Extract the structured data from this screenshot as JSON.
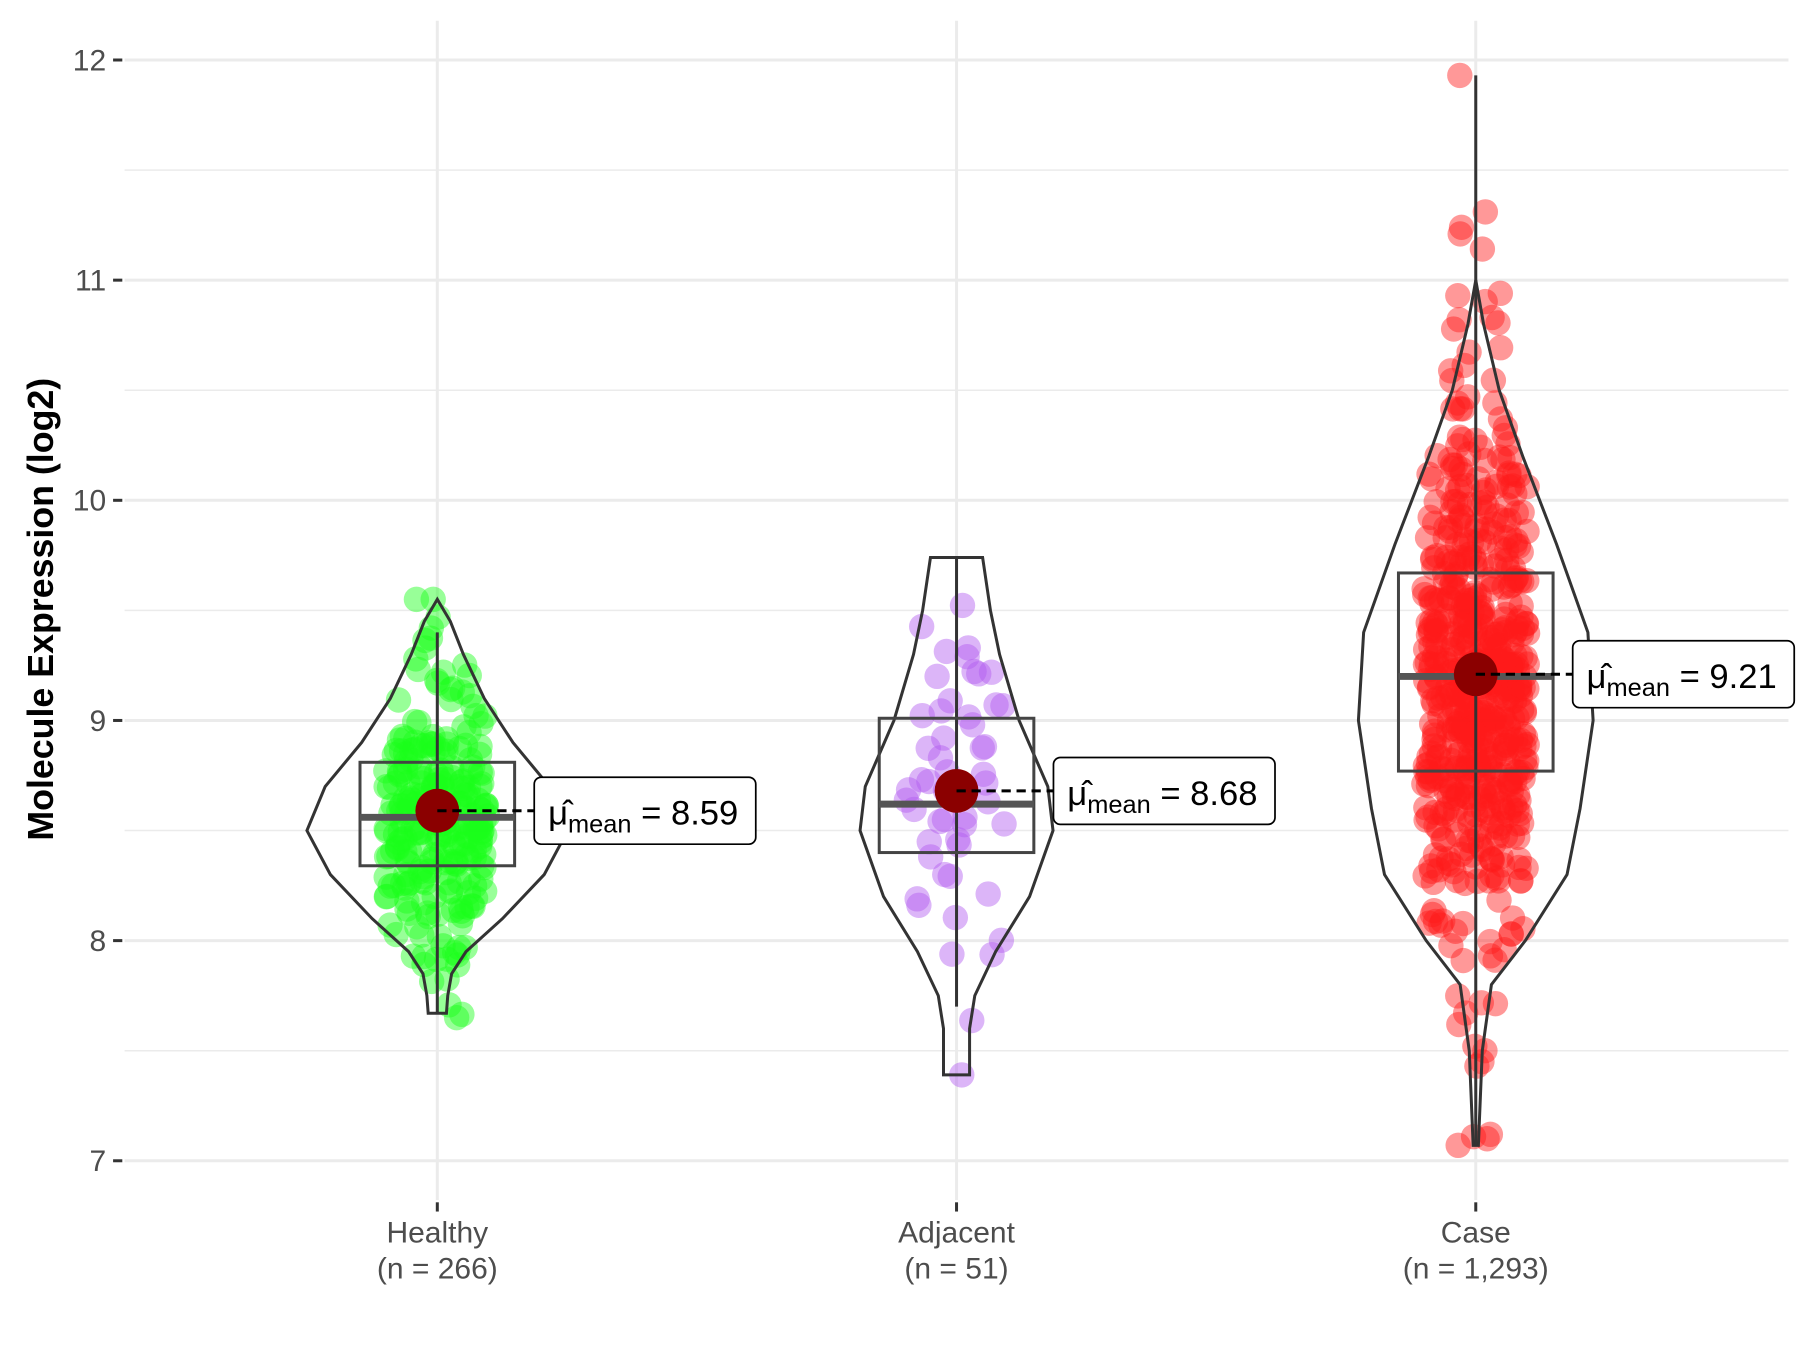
{
  "chart_data": {
    "type": "violin",
    "title": "",
    "xlabel": "",
    "ylabel": "Molecule Expression (log2)",
    "ylim": [
      6.75,
      12.2
    ],
    "yticks": [
      7,
      8,
      9,
      10,
      11,
      12
    ],
    "grid": true,
    "mean_label_prefix": "μ̂",
    "mean_label_sub": "mean",
    "groups": [
      {
        "name": "Healthy",
        "n_label": "(n = 266)",
        "n": 266,
        "color": "#1aff1a",
        "mean": 8.59,
        "mean_label": "= 8.59",
        "box": {
          "whisker_low": 7.67,
          "q1": 8.34,
          "median": 8.56,
          "q3": 8.81,
          "whisker_high": 9.4
        },
        "point_range": [
          7.65,
          9.55
        ],
        "point_sd": 0.35,
        "density": [
          [
            7.67,
            0.07
          ],
          [
            7.75,
            0.08
          ],
          [
            7.85,
            0.11
          ],
          [
            7.95,
            0.22
          ],
          [
            8.1,
            0.5
          ],
          [
            8.3,
            0.82
          ],
          [
            8.5,
            1.0
          ],
          [
            8.7,
            0.86
          ],
          [
            8.9,
            0.58
          ],
          [
            9.1,
            0.36
          ],
          [
            9.3,
            0.2
          ],
          [
            9.45,
            0.1
          ],
          [
            9.55,
            0.0
          ]
        ]
      },
      {
        "name": "Adjacent",
        "n_label": "(n = 51)",
        "n": 51,
        "color": "#b25cf0",
        "mean": 8.68,
        "mean_label": "= 8.68",
        "box": {
          "whisker_low": 7.7,
          "q1": 8.4,
          "median": 8.62,
          "q3": 9.01,
          "whisker_high": 9.74
        },
        "point_range": [
          7.39,
          9.74
        ],
        "point_sd": 0.45,
        "density": [
          [
            7.39,
            0.1
          ],
          [
            7.6,
            0.1
          ],
          [
            7.75,
            0.14
          ],
          [
            7.95,
            0.3
          ],
          [
            8.2,
            0.56
          ],
          [
            8.5,
            0.74
          ],
          [
            8.7,
            0.7
          ],
          [
            9.0,
            0.48
          ],
          [
            9.3,
            0.33
          ],
          [
            9.5,
            0.26
          ],
          [
            9.74,
            0.2
          ]
        ]
      },
      {
        "name": "Case",
        "n_label": "(n = 1,293)",
        "n": 1293,
        "color": "#ff1a1a",
        "mean": 9.21,
        "mean_label": "= 9.21",
        "box": {
          "whisker_low": 7.07,
          "q1": 8.77,
          "median": 9.2,
          "q3": 9.67,
          "whisker_high": 11.93
        },
        "point_range": [
          7.07,
          11.93
        ],
        "point_sd": 0.62,
        "outliers": [
          11.93,
          11.31,
          11.24,
          11.21,
          10.94,
          7.07,
          7.1,
          7.12,
          7.43,
          7.45,
          7.5,
          7.52
        ],
        "density": [
          [
            7.07,
            0.02
          ],
          [
            7.5,
            0.05
          ],
          [
            7.8,
            0.12
          ],
          [
            8.0,
            0.38
          ],
          [
            8.3,
            0.7
          ],
          [
            8.6,
            0.8
          ],
          [
            9.0,
            0.9
          ],
          [
            9.4,
            0.86
          ],
          [
            9.8,
            0.62
          ],
          [
            10.2,
            0.36
          ],
          [
            10.5,
            0.18
          ],
          [
            10.8,
            0.06
          ],
          [
            11.0,
            0.0
          ]
        ]
      }
    ]
  }
}
